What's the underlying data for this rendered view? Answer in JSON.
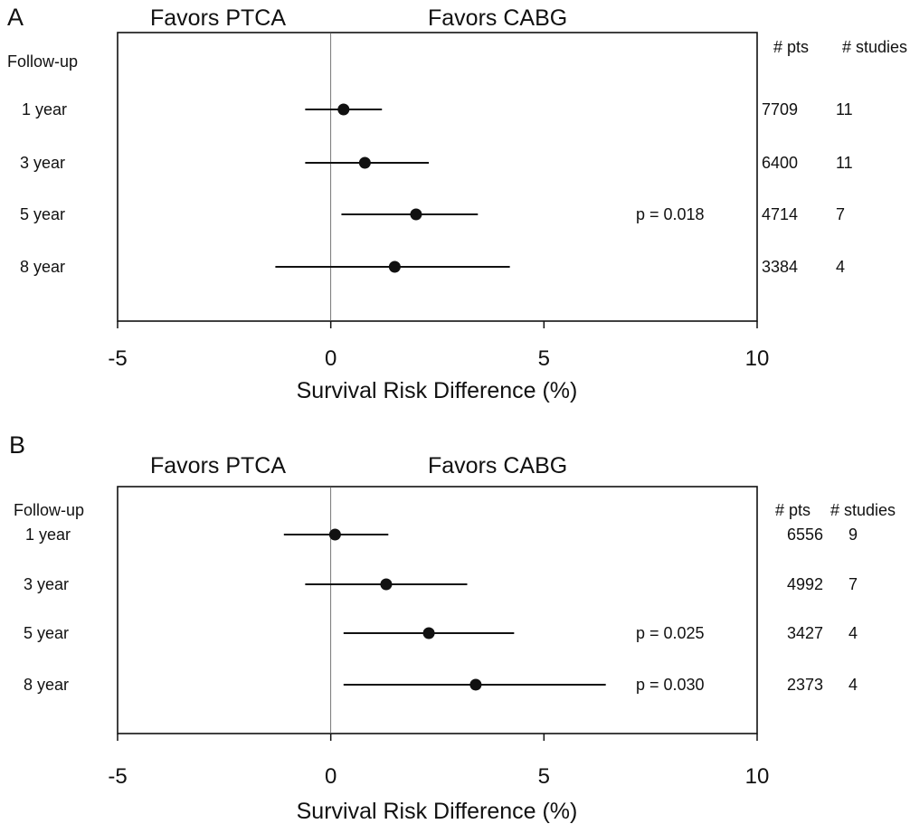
{
  "chart_data": [
    {
      "type": "scatter",
      "panel": "A",
      "header_left": "Favors PTCA",
      "header_right": "Favors CABG",
      "row_header": "Follow-up",
      "col_headers": [
        "# pts",
        "# studies"
      ],
      "xlabel": "Survival Risk Difference (%)",
      "xlim": [
        -5,
        10
      ],
      "xticks": [
        -5,
        0,
        5,
        10
      ],
      "rows": [
        {
          "label": "1 year",
          "est": 0.3,
          "lo": -0.6,
          "hi": 1.2,
          "pts": "7709",
          "studies": "11",
          "p": ""
        },
        {
          "label": "3 year",
          "est": 0.8,
          "lo": -0.6,
          "hi": 2.3,
          "pts": "6400",
          "studies": "11",
          "p": ""
        },
        {
          "label": "5 year",
          "est": 2.0,
          "lo": 0.25,
          "hi": 3.45,
          "pts": "4714",
          "studies": "7",
          "p": "p = 0.018"
        },
        {
          "label": "8 year",
          "est": 1.5,
          "lo": -1.3,
          "hi": 4.2,
          "pts": "3384",
          "studies": "4",
          "p": ""
        }
      ]
    },
    {
      "type": "scatter",
      "panel": "B",
      "header_left": "Favors PTCA",
      "header_right": "Favors CABG",
      "row_header": "Follow-up",
      "col_headers": [
        "# pts",
        "# studies"
      ],
      "xlabel": "Survival Risk Difference (%)",
      "xlim": [
        -5,
        10
      ],
      "xticks": [
        -5,
        0,
        5,
        10
      ],
      "rows": [
        {
          "label": "1 year",
          "est": 0.1,
          "lo": -1.1,
          "hi": 1.35,
          "pts": "6556",
          "studies": "9",
          "p": ""
        },
        {
          "label": "3 year",
          "est": 1.3,
          "lo": -0.6,
          "hi": 3.2,
          "pts": "4992",
          "studies": "7",
          "p": ""
        },
        {
          "label": "5 year",
          "est": 2.3,
          "lo": 0.3,
          "hi": 4.3,
          "pts": "3427",
          "studies": "4",
          "p": "p = 0.025"
        },
        {
          "label": "8 year",
          "est": 3.4,
          "lo": 0.3,
          "hi": 6.45,
          "pts": "2373",
          "studies": "4",
          "p": "p = 0.030"
        }
      ]
    }
  ]
}
